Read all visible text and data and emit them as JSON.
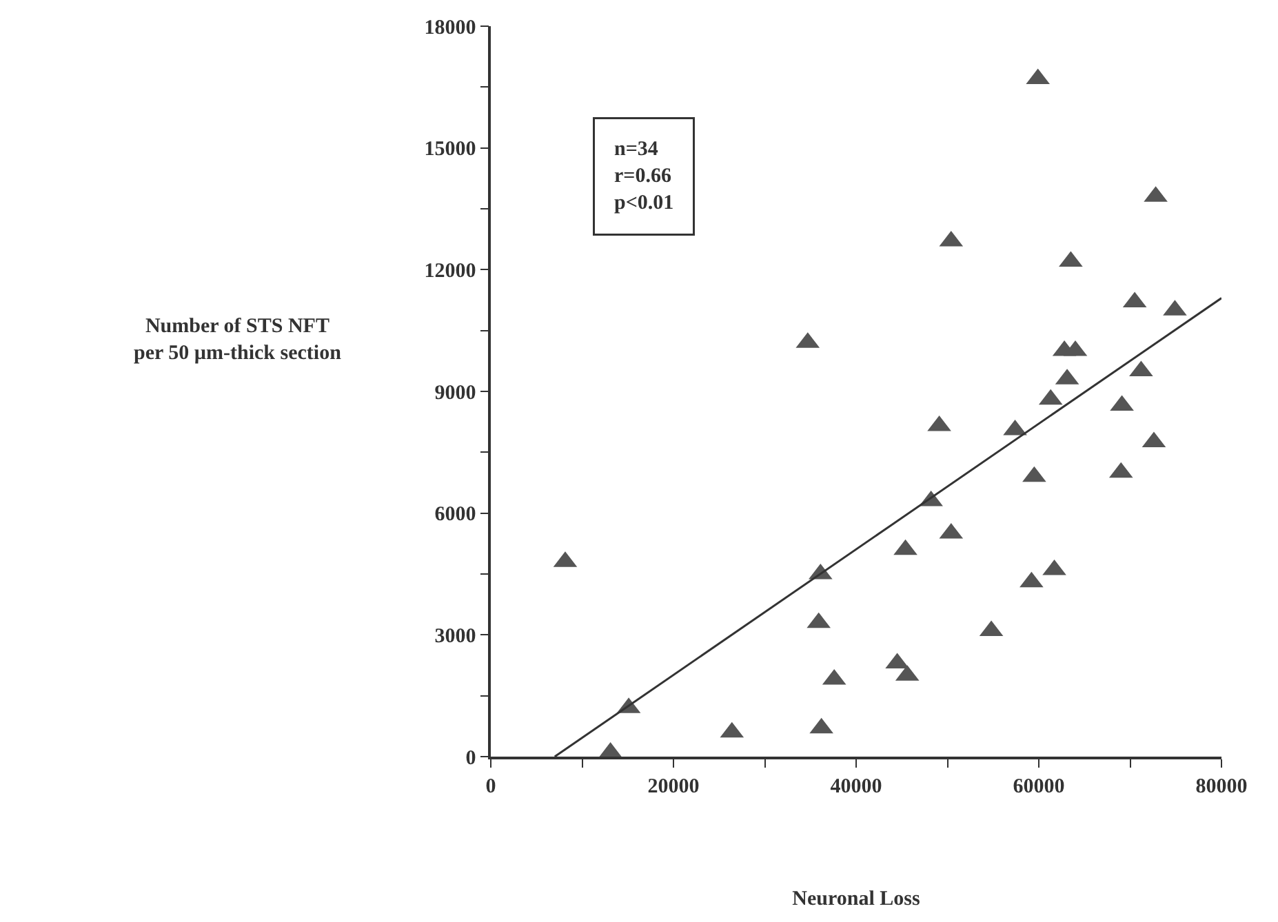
{
  "chart_data": {
    "type": "scatter",
    "xlabel": "Neuronal Loss",
    "ylabel": "Number of STS NFT\nper 50 µm-thick section",
    "annotations": [
      "n=34\nr=0.66\np<0.01"
    ],
    "xlim": [
      0,
      80000
    ],
    "ylim": [
      0,
      18000
    ],
    "xticks": [
      0,
      {
        "value": 10000,
        "label": null
      },
      20000,
      {
        "value": 30000,
        "label": null
      },
      40000,
      {
        "value": 50000,
        "label": null
      },
      60000,
      {
        "value": 70000,
        "label": null
      },
      80000
    ],
    "yticks": [
      0,
      {
        "value": 1500,
        "label": null
      },
      3000,
      {
        "value": 4500,
        "label": null
      },
      6000,
      {
        "value": 7500,
        "label": null
      },
      9000,
      {
        "value": 10500,
        "label": null
      },
      12000,
      {
        "value": 13500,
        "label": null
      },
      15000,
      {
        "value": 16500,
        "label": null
      },
      18000
    ],
    "marker": "triangle",
    "series": [
      {
        "color": "#555555",
        "x": [
          8150,
          13100,
          15100,
          26400,
          34700,
          36100,
          35900,
          36200,
          37600,
          44500,
          45600,
          45400,
          48200,
          49100,
          50400,
          50400,
          54800,
          57400,
          59200,
          59500,
          59900,
          61300,
          61700,
          62800,
          63100,
          63500,
          64000,
          69100,
          69000,
          70500,
          71200,
          72600,
          72800,
          74900
        ],
        "values": [
          4800,
          100,
          1200,
          600,
          10200,
          4500,
          3300,
          700,
          1900,
          2300,
          2000,
          5100,
          6300,
          8150,
          5500,
          12700,
          3100,
          8050,
          4300,
          6900,
          16700,
          8800,
          4600,
          10000,
          9300,
          12200,
          10000,
          8650,
          7000,
          11200,
          9500,
          7750,
          13800,
          11000
        ]
      },
      {
        "type": "line",
        "marker": "none",
        "color": "#333333",
        "x": [
          7000,
          80000
        ],
        "values": [
          0,
          11300
        ]
      }
    ]
  }
}
